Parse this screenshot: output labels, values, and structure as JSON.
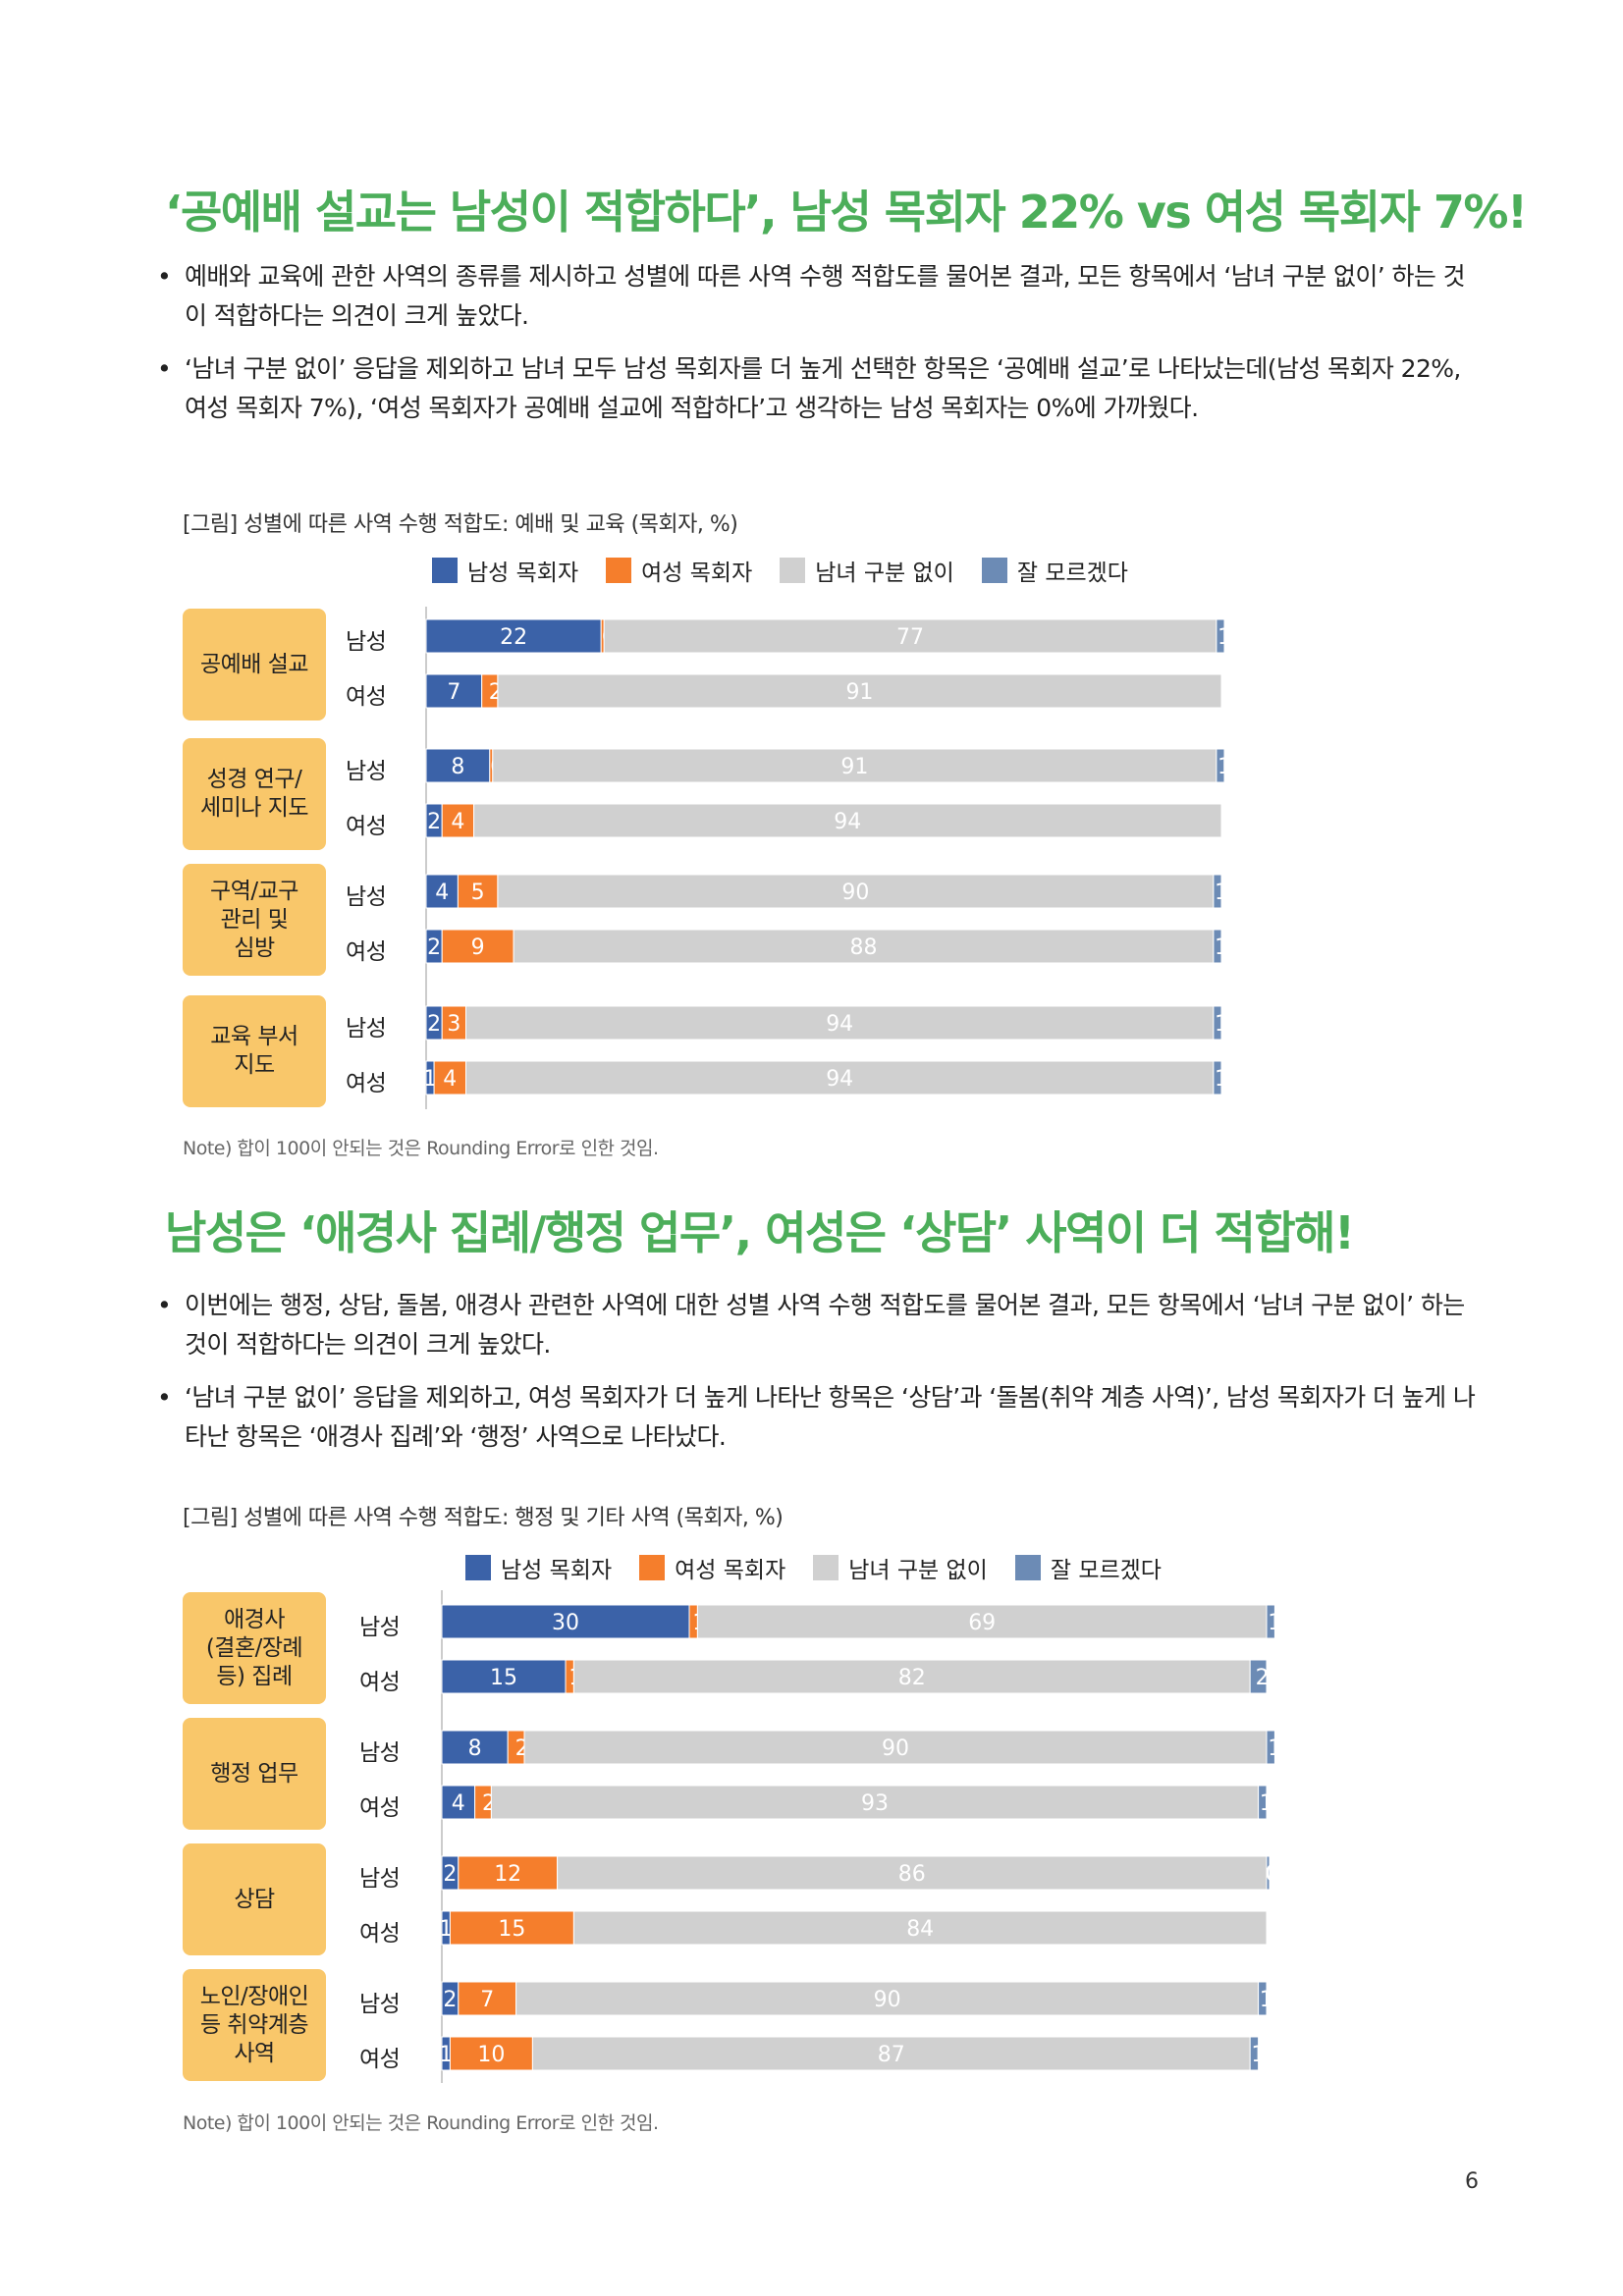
{
  "sections": [
    {
      "title": "‘공예배 설교는 남성이 적합하다’, 남성 목회자 22% vs 여성 목회자 7%!",
      "bullets": [
        "예배와 교육에 관한 사역의 종류를 제시하고 성별에 따른 사역 수행 적합도를 물어본 결과, 모든 항목에서 ‘남녀 구분 없이’ 하는 것이 적합하다는 의견이 크게 높았다.",
        "‘남녀 구분 없이’ 응답을 제외하고 남녀 모두 남성 목회자를 더 높게 선택한 항목은 ‘공예배 설교’로 나타났는데(남성 목회자 22%, 여성 목회자 7%), ‘여성 목회자가 공예배 설교에 적합하다’고 생각하는 남성 목회자는 0%에 가까웠다."
      ],
      "caption": "[그림] 성별에 따른 사역 수행 적합도: 예배 및 교육 (목회자, %)",
      "note": "Note) 합이 100이 안되는 것은 Rounding Error로 인한 것임."
    },
    {
      "title": "남성은 ‘애경사 집례/행정 업무’, 여성은 ‘상담’ 사역이 더 적합해!",
      "bullets": [
        "이번에는 행정, 상담, 돌봄, 애경사 관련한 사역에 대한 성별 사역 수행 적합도를 물어본 결과, 모든 항목에서 ‘남녀 구분 없이’ 하는 것이 적합하다는 의견이 크게 높았다.",
        "‘남녀 구분 없이’ 응답을 제외하고, 여성 목회자가 더 높게 나타난 항목은 ‘상담’과 ‘돌봄(취약 계층 사역)’, 남성 목회자가 더 높게 나타난 항목은 ‘애경사 집례’와 ‘행정’ 사역으로 나타났다."
      ],
      "caption": "[그림] 성별에 따른 사역 수행 적합도: 행정 및 기타 사역 (목회자, %)",
      "note": "Note) 합이 100이 안되는 것은 Rounding Error로 인한 것임."
    }
  ],
  "legend": [
    {
      "label": "남성 목회자",
      "color": "#3b62a8"
    },
    {
      "label": "여성 목회자",
      "color": "#f57e2c"
    },
    {
      "label": "남녀 구분 없이",
      "color": "#d0d0d0"
    },
    {
      "label": "잘 모르겠다",
      "color": "#6c8bb5"
    }
  ],
  "chart_data": [
    {
      "type": "bar",
      "orientation": "horizontal",
      "stacked": true,
      "title": "[그림] 성별에 따른 사역 수행 적합도: 예배 및 교육 (목회자, %)",
      "categories": [
        "공예배 설교",
        "성경 연구/\n세미나 지도",
        "구역/교구\n관리 및\n심방",
        "교육 부서\n지도"
      ],
      "row_labels": [
        "남성",
        "여성"
      ],
      "series_names": [
        "남성 목회자",
        "여성 목회자",
        "남녀 구분 없이",
        "잘 모르겠다"
      ],
      "rows": [
        {
          "category": "공예배 설교",
          "group": "남성",
          "values": [
            22,
            0,
            77,
            1
          ]
        },
        {
          "category": "공예배 설교",
          "group": "여성",
          "values": [
            7,
            2,
            91,
            null
          ]
        },
        {
          "category": "성경 연구/세미나 지도",
          "group": "남성",
          "values": [
            8,
            0,
            91,
            1
          ]
        },
        {
          "category": "성경 연구/세미나 지도",
          "group": "여성",
          "values": [
            2,
            4,
            94,
            null
          ]
        },
        {
          "category": "구역/교구 관리 및 심방",
          "group": "남성",
          "values": [
            4,
            5,
            90,
            1
          ]
        },
        {
          "category": "구역/교구 관리 및 심방",
          "group": "여성",
          "values": [
            2,
            9,
            88,
            1
          ]
        },
        {
          "category": "교육 부서 지도",
          "group": "남성",
          "values": [
            2,
            3,
            94,
            1
          ]
        },
        {
          "category": "교육 부서 지도",
          "group": "여성",
          "values": [
            1,
            4,
            94,
            1
          ]
        }
      ],
      "xlim": [
        0,
        100
      ],
      "legend_position": "top",
      "grid": false
    },
    {
      "type": "bar",
      "orientation": "horizontal",
      "stacked": true,
      "title": "[그림] 성별에 따른 사역 수행 적합도: 행정 및 기타 사역 (목회자, %)",
      "categories": [
        "애경사\n(결혼/장례\n등) 집례",
        "행정 업무",
        "상담",
        "노인/장애인\n등 취약계층\n사역"
      ],
      "row_labels": [
        "남성",
        "여성"
      ],
      "series_names": [
        "남성 목회자",
        "여성 목회자",
        "남녀 구분 없이",
        "잘 모르겠다"
      ],
      "rows": [
        {
          "category": "애경사(결혼/장례 등) 집례",
          "group": "남성",
          "values": [
            30,
            1,
            69,
            1
          ]
        },
        {
          "category": "애경사(결혼/장례 등) 집례",
          "group": "여성",
          "values": [
            15,
            1,
            82,
            2
          ]
        },
        {
          "category": "행정 업무",
          "group": "남성",
          "values": [
            8,
            2,
            90,
            1
          ]
        },
        {
          "category": "행정 업무",
          "group": "여성",
          "values": [
            4,
            2,
            93,
            1
          ]
        },
        {
          "category": "상담",
          "group": "남성",
          "values": [
            2,
            12,
            86,
            0
          ]
        },
        {
          "category": "상담",
          "group": "여성",
          "values": [
            1,
            15,
            84,
            null
          ]
        },
        {
          "category": "노인/장애인 등 취약계층 사역",
          "group": "남성",
          "values": [
            2,
            7,
            90,
            1
          ]
        },
        {
          "category": "노인/장애인 등 취약계층 사역",
          "group": "여성",
          "values": [
            1,
            10,
            87,
            1
          ]
        }
      ],
      "xlim": [
        0,
        100
      ],
      "legend_position": "top",
      "grid": false
    }
  ],
  "page_number": "6"
}
